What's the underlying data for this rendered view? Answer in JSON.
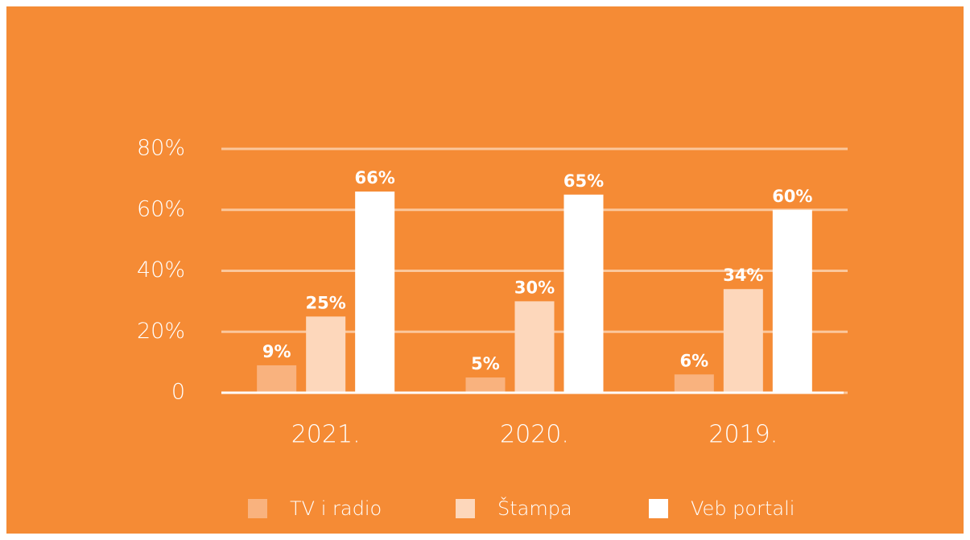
{
  "chart_data": {
    "type": "bar",
    "categories": [
      "2021.",
      "2020.",
      "2019."
    ],
    "series": [
      {
        "name": "TV i radio",
        "color": "#f9b27e",
        "values": [
          9,
          5,
          6
        ],
        "value_labels": [
          "9%",
          "5%",
          "6%"
        ]
      },
      {
        "name": "Štampa",
        "color": "#fdd7bb",
        "values": [
          25,
          30,
          34
        ],
        "value_labels": [
          "25%",
          "30%",
          "34%"
        ]
      },
      {
        "name": "Veb portali",
        "color": "#ffffff",
        "values": [
          66,
          65,
          60
        ],
        "value_labels": [
          "66%",
          "65%",
          "60%"
        ]
      }
    ],
    "ylim": [
      0,
      80
    ],
    "yticks": [
      0,
      {
        "value": 20,
        "label": "20%"
      },
      {
        "value": 40,
        "label": "40%"
      },
      {
        "value": 60,
        "label": "60%"
      },
      {
        "value": 80,
        "label": "80%"
      }
    ],
    "grid": true,
    "legend": "bottom"
  }
}
